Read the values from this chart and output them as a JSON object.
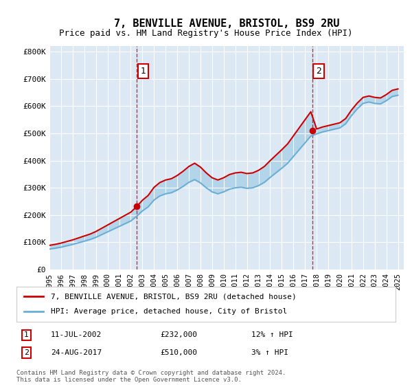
{
  "title": "7, BENVILLE AVENUE, BRISTOL, BS9 2RU",
  "subtitle": "Price paid vs. HM Land Registry's House Price Index (HPI)",
  "xlabel": "",
  "ylabel": "",
  "ylim": [
    0,
    820000
  ],
  "yticks": [
    0,
    100000,
    200000,
    300000,
    400000,
    500000,
    600000,
    700000,
    800000
  ],
  "ytick_labels": [
    "£0",
    "£100K",
    "£200K",
    "£300K",
    "£400K",
    "£500K",
    "£600K",
    "£700K",
    "£800K"
  ],
  "background_color": "#dce9f5",
  "plot_bg_color": "#dce9f5",
  "fig_bg_color": "#ffffff",
  "hpi_color": "#6aaed6",
  "price_color": "#cc0000",
  "sale1_date": 2002.53,
  "sale1_price": 232000,
  "sale2_date": 2017.64,
  "sale2_price": 510000,
  "legend_label1": "7, BENVILLE AVENUE, BRISTOL, BS9 2RU (detached house)",
  "legend_label2": "HPI: Average price, detached house, City of Bristol",
  "annotation1_label": "1",
  "annotation2_label": "2",
  "note1_num": "1",
  "note1_date": "11-JUL-2002",
  "note1_price": "£232,000",
  "note1_hpi": "12% ↑ HPI",
  "note2_num": "2",
  "note2_date": "24-AUG-2017",
  "note2_price": "£510,000",
  "note2_hpi": "3% ↑ HPI",
  "copyright_text": "Contains HM Land Registry data © Crown copyright and database right 2024.\nThis data is licensed under the Open Government Licence v3.0.",
  "xmin": 1995,
  "xmax": 2025.5
}
